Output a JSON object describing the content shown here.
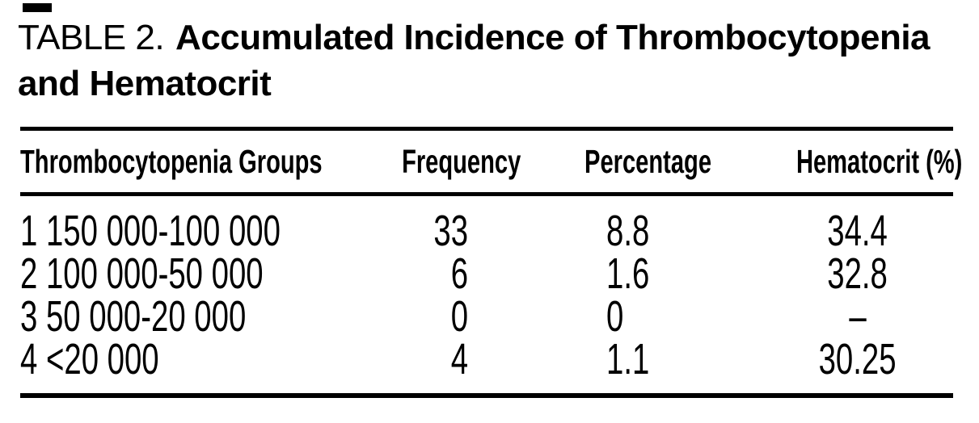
{
  "title": {
    "label": "TABLE 2.",
    "text_line1": "Accumulated Incidence of Thrombocytopenia",
    "text_line2": "and Hematocrit"
  },
  "table": {
    "columns": [
      "Thrombocytopenia Groups",
      "Frequency",
      "Percentage",
      "Hematocrit (%)"
    ],
    "rows": [
      [
        "1 150 000-100 000",
        "33",
        "8.8",
        "34.4"
      ],
      [
        "2 100 000-50 000",
        "6",
        "1.6",
        "32.8"
      ],
      [
        "3 50 000-20 000",
        "0",
        "0",
        "–"
      ],
      [
        "4 <20 000",
        "4",
        "1.1",
        "30.25"
      ]
    ]
  },
  "colors": {
    "ink": "#000000",
    "paper": "#ffffff"
  }
}
